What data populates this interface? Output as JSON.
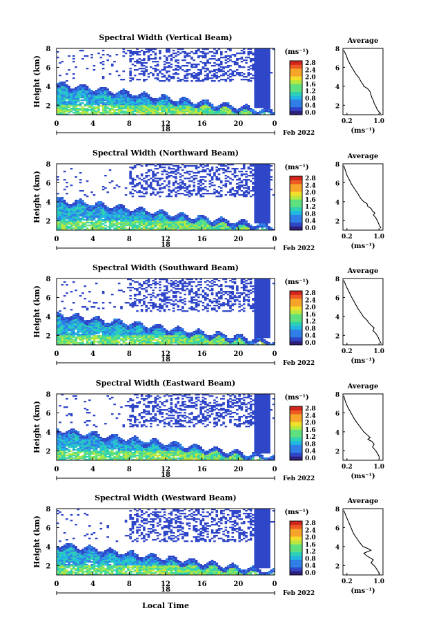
{
  "figure": {
    "xlabel": "Local Time",
    "colors": {
      "background": "#ffffff",
      "colormap": [
        "#2e1f7a",
        "#2f46c8",
        "#2f7fe6",
        "#22b7e2",
        "#2fd1b3",
        "#5fe07f",
        "#b8e83f",
        "#f2df2b",
        "#f7a52a",
        "#ee5a22",
        "#d2251d"
      ]
    }
  },
  "chart_data": [
    {
      "type": "heatmap",
      "title": "Spectral Width (Vertical Beam)",
      "ylabel": "Height (km)",
      "x_ticks": [
        "0",
        "4",
        "8",
        "12",
        "16",
        "20",
        "0"
      ],
      "day_label": "18",
      "date_label": "Feb 2022",
      "xlim": [
        0,
        24
      ],
      "ylim": [
        1,
        8
      ],
      "y_ticks": [
        "8",
        "6",
        "4",
        "2"
      ],
      "colorbar": {
        "unit": "(ms⁻¹)",
        "ticks": [
          "2.8",
          "2.4",
          "2.0",
          "1.6",
          "1.2",
          "0.8",
          "0.4",
          "0.0"
        ],
        "range": [
          0.0,
          2.8
        ]
      },
      "profile": {
        "title": "Average",
        "xlabel": "(ms⁻¹)",
        "x_ticks": [
          "0.2",
          "1.0"
        ],
        "xlim": [
          0.1,
          1.1
        ],
        "x": [
          0.12,
          0.18,
          0.22,
          0.28,
          0.35,
          0.42,
          0.5,
          0.55,
          0.6,
          0.62,
          0.7,
          0.75,
          0.78,
          0.8,
          0.82,
          0.86,
          0.88,
          0.92,
          0.95,
          1.0,
          1.05
        ],
        "y": [
          7.8,
          7.3,
          6.8,
          6.3,
          5.8,
          5.3,
          4.9,
          4.5,
          4.2,
          4.0,
          3.8,
          3.6,
          3.4,
          3.1,
          2.8,
          2.5,
          2.2,
          1.9,
          1.6,
          1.3,
          1.1
        ]
      }
    },
    {
      "type": "heatmap",
      "title": "Spectral Width (Northward Beam)",
      "ylabel": "Height (km)",
      "x_ticks": [
        "0",
        "4",
        "8",
        "12",
        "16",
        "20",
        "0"
      ],
      "day_label": "18",
      "date_label": "Feb 2022",
      "xlim": [
        0,
        24
      ],
      "ylim": [
        1,
        8
      ],
      "y_ticks": [
        "8",
        "6",
        "4",
        "2"
      ],
      "colorbar": {
        "unit": "(ms⁻¹)",
        "ticks": [
          "2.8",
          "2.4",
          "2.0",
          "1.6",
          "1.2",
          "0.8",
          "0.4",
          "0.0"
        ],
        "range": [
          0.0,
          2.8
        ]
      },
      "profile": {
        "title": "Average",
        "xlabel": "(ms⁻¹)",
        "x_ticks": [
          "0.2",
          "1.0"
        ],
        "xlim": [
          0.1,
          1.1
        ],
        "x": [
          0.12,
          0.16,
          0.2,
          0.26,
          0.32,
          0.4,
          0.48,
          0.55,
          0.62,
          0.7,
          0.72,
          0.8,
          0.84,
          0.9,
          0.86,
          0.92,
          0.96,
          1.0,
          1.05
        ],
        "y": [
          7.8,
          7.3,
          6.8,
          6.3,
          5.8,
          5.3,
          4.8,
          4.3,
          4.0,
          3.8,
          3.5,
          3.3,
          3.0,
          2.8,
          2.6,
          2.3,
          2.0,
          1.6,
          1.2
        ]
      }
    },
    {
      "type": "heatmap",
      "title": "Spectral Width (Southward Beam)",
      "ylabel": "Height (km)",
      "x_ticks": [
        "0",
        "4",
        "8",
        "12",
        "16",
        "20",
        "0"
      ],
      "day_label": "18",
      "date_label": "Feb 2022",
      "xlim": [
        0,
        24
      ],
      "ylim": [
        1,
        8
      ],
      "y_ticks": [
        "8",
        "6",
        "4",
        "2"
      ],
      "colorbar": {
        "unit": "(ms⁻¹)",
        "ticks": [
          "2.8",
          "2.4",
          "2.0",
          "1.6",
          "1.2",
          "0.8",
          "0.4",
          "0.0"
        ],
        "range": [
          0.0,
          2.8
        ]
      },
      "profile": {
        "title": "Average",
        "xlabel": "(ms⁻¹)",
        "x_ticks": [
          "0.2",
          "1.0"
        ],
        "xlim": [
          0.1,
          1.1
        ],
        "x": [
          0.12,
          0.18,
          0.25,
          0.32,
          0.4,
          0.48,
          0.56,
          0.62,
          0.7,
          0.75,
          0.82,
          0.88,
          0.85,
          0.92,
          0.98,
          1.02,
          1.06
        ],
        "y": [
          7.8,
          7.2,
          6.6,
          6.0,
          5.4,
          4.8,
          4.3,
          3.9,
          3.6,
          3.3,
          3.0,
          2.8,
          2.5,
          2.2,
          1.8,
          1.4,
          1.1
        ]
      }
    },
    {
      "type": "heatmap",
      "title": "Spectral Width (Eastward Beam)",
      "ylabel": "Height (km)",
      "x_ticks": [
        "0",
        "4",
        "8",
        "12",
        "16",
        "20",
        "0"
      ],
      "day_label": "18",
      "date_label": "Feb 2022",
      "xlim": [
        0,
        24
      ],
      "ylim": [
        1,
        8
      ],
      "y_ticks": [
        "8",
        "6",
        "4",
        "2"
      ],
      "colorbar": {
        "unit": "(ms⁻¹)",
        "ticks": [
          "2.8",
          "2.4",
          "2.0",
          "1.6",
          "1.2",
          "0.8",
          "0.4",
          "0.0"
        ],
        "range": [
          0.0,
          2.8
        ]
      },
      "profile": {
        "title": "Average",
        "xlabel": "(ms⁻¹)",
        "x_ticks": [
          "0.2",
          "1.0"
        ],
        "xlim": [
          0.1,
          1.1
        ],
        "x": [
          0.12,
          0.16,
          0.22,
          0.3,
          0.38,
          0.46,
          0.55,
          0.62,
          0.7,
          0.78,
          0.72,
          0.82,
          0.88,
          0.84,
          0.92,
          0.98,
          1.02
        ],
        "y": [
          7.8,
          7.2,
          6.6,
          6.0,
          5.4,
          4.9,
          4.4,
          4.0,
          3.7,
          3.4,
          3.2,
          3.0,
          2.7,
          2.4,
          2.0,
          1.6,
          1.2
        ]
      }
    },
    {
      "type": "heatmap",
      "title": "Spectral Width (Westward Beam)",
      "ylabel": "Height (km)",
      "x_ticks": [
        "0",
        "4",
        "8",
        "12",
        "16",
        "20",
        "0"
      ],
      "day_label": "18",
      "date_label": "Feb 2022",
      "xlim": [
        0,
        24
      ],
      "ylim": [
        1,
        8
      ],
      "y_ticks": [
        "8",
        "6",
        "4",
        "2"
      ],
      "colorbar": {
        "unit": "(ms⁻¹)",
        "ticks": [
          "2.8",
          "2.4",
          "2.0",
          "1.6",
          "1.2",
          "0.8",
          "0.4",
          "0.0"
        ],
        "range": [
          0.0,
          2.8
        ]
      },
      "profile": {
        "title": "Average",
        "xlabel": "(ms⁻¹)",
        "x_ticks": [
          "0.2",
          "1.0"
        ],
        "xlim": [
          0.1,
          1.1
        ],
        "x": [
          0.12,
          0.18,
          0.24,
          0.3,
          0.36,
          0.44,
          0.52,
          0.6,
          0.72,
          0.8,
          0.62,
          0.7,
          0.78,
          0.86,
          0.8,
          0.9,
          0.96,
          1.02
        ],
        "y": [
          7.8,
          7.2,
          6.6,
          6.0,
          5.4,
          4.9,
          4.4,
          4.0,
          3.8,
          3.6,
          3.3,
          3.0,
          2.8,
          2.6,
          2.3,
          1.9,
          1.5,
          1.1
        ]
      }
    }
  ]
}
